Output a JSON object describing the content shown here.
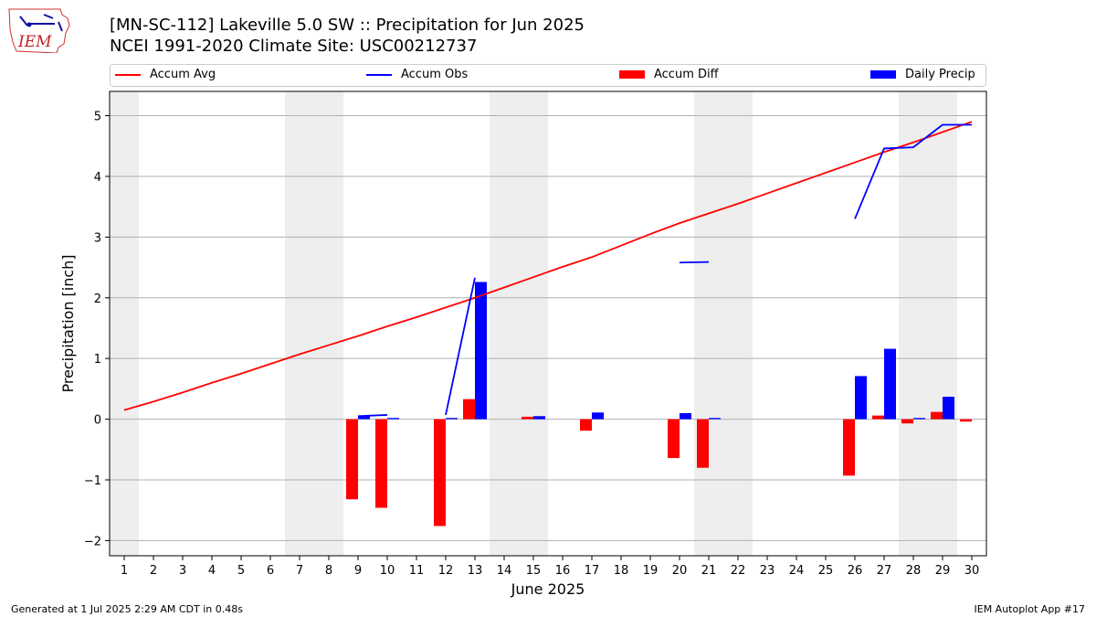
{
  "header": {
    "title_line1": "[MN-SC-112] Lakeville 5.0 SW :: Precipitation for Jun 2025",
    "title_line2": "NCEI 1991-2020 Climate Site: USC00212737",
    "logo_text": "IEM"
  },
  "footer": {
    "generated": "Generated at 1 Jul 2025 2:29 AM CDT in 0.48s",
    "app": "IEM Autoplot App #17"
  },
  "colors": {
    "accum_avg": "#ff0000",
    "accum_obs": "#0000ff",
    "accum_diff": "#ff0000",
    "daily_precip": "#0000ff",
    "weekend_shade": "#eeeeee",
    "grid": "#b0b0b0"
  },
  "chart_data": {
    "type": "bar",
    "title": "[MN-SC-112] Lakeville 5.0 SW :: Precipitation for Jun 2025",
    "xlabel": "June 2025",
    "ylabel": "Precipitation [inch]",
    "ylim": [
      -2.25,
      5.4
    ],
    "yticks": [
      -2,
      -1,
      0,
      1,
      2,
      3,
      4,
      5
    ],
    "ytick_labels": [
      "−2",
      "−1",
      "0",
      "1",
      "2",
      "3",
      "4",
      "5"
    ],
    "grid": "horizontal",
    "legend_position": "top, above plot",
    "categories": [
      "1",
      "2",
      "3",
      "4",
      "5",
      "6",
      "7",
      "8",
      "9",
      "10",
      "11",
      "12",
      "13",
      "14",
      "15",
      "16",
      "17",
      "18",
      "19",
      "20",
      "21",
      "22",
      "23",
      "24",
      "25",
      "26",
      "27",
      "28",
      "29",
      "30"
    ],
    "shaded_days": [
      1,
      7,
      8,
      14,
      15,
      21,
      22,
      28,
      29
    ],
    "series": [
      {
        "name": "Accum Avg",
        "kind": "line",
        "values": [
          0.15,
          0.29,
          0.44,
          0.6,
          0.75,
          0.91,
          1.07,
          1.22,
          1.37,
          1.53,
          1.68,
          1.84,
          2.0,
          2.17,
          2.34,
          2.51,
          2.67,
          2.86,
          3.05,
          3.23,
          3.39,
          3.55,
          3.72,
          3.89,
          4.06,
          4.23,
          4.4,
          4.56,
          4.73,
          4.9
        ]
      },
      {
        "name": "Accum Obs",
        "kind": "line",
        "values": [
          null,
          null,
          null,
          null,
          null,
          null,
          null,
          null,
          0.05,
          0.07,
          null,
          0.07,
          2.33,
          null,
          null,
          null,
          null,
          null,
          null,
          2.58,
          2.59,
          null,
          null,
          null,
          null,
          3.3,
          4.46,
          4.48,
          4.85,
          4.85
        ]
      },
      {
        "name": "Accum Diff",
        "kind": "bar",
        "values": [
          null,
          null,
          null,
          null,
          null,
          null,
          null,
          null,
          -1.32,
          -1.46,
          null,
          -1.76,
          0.33,
          null,
          0.04,
          null,
          -0.19,
          null,
          null,
          -0.64,
          -0.8,
          null,
          null,
          null,
          null,
          -0.93,
          0.06,
          -0.07,
          0.12,
          -0.04
        ]
      },
      {
        "name": "Daily Precip",
        "kind": "bar",
        "values": [
          null,
          null,
          null,
          null,
          null,
          null,
          null,
          null,
          0.06,
          0.02,
          null,
          0.02,
          2.26,
          null,
          0.05,
          null,
          0.11,
          null,
          null,
          0.1,
          0.02,
          null,
          null,
          null,
          null,
          0.71,
          1.16,
          0.02,
          0.37,
          null
        ]
      }
    ]
  }
}
